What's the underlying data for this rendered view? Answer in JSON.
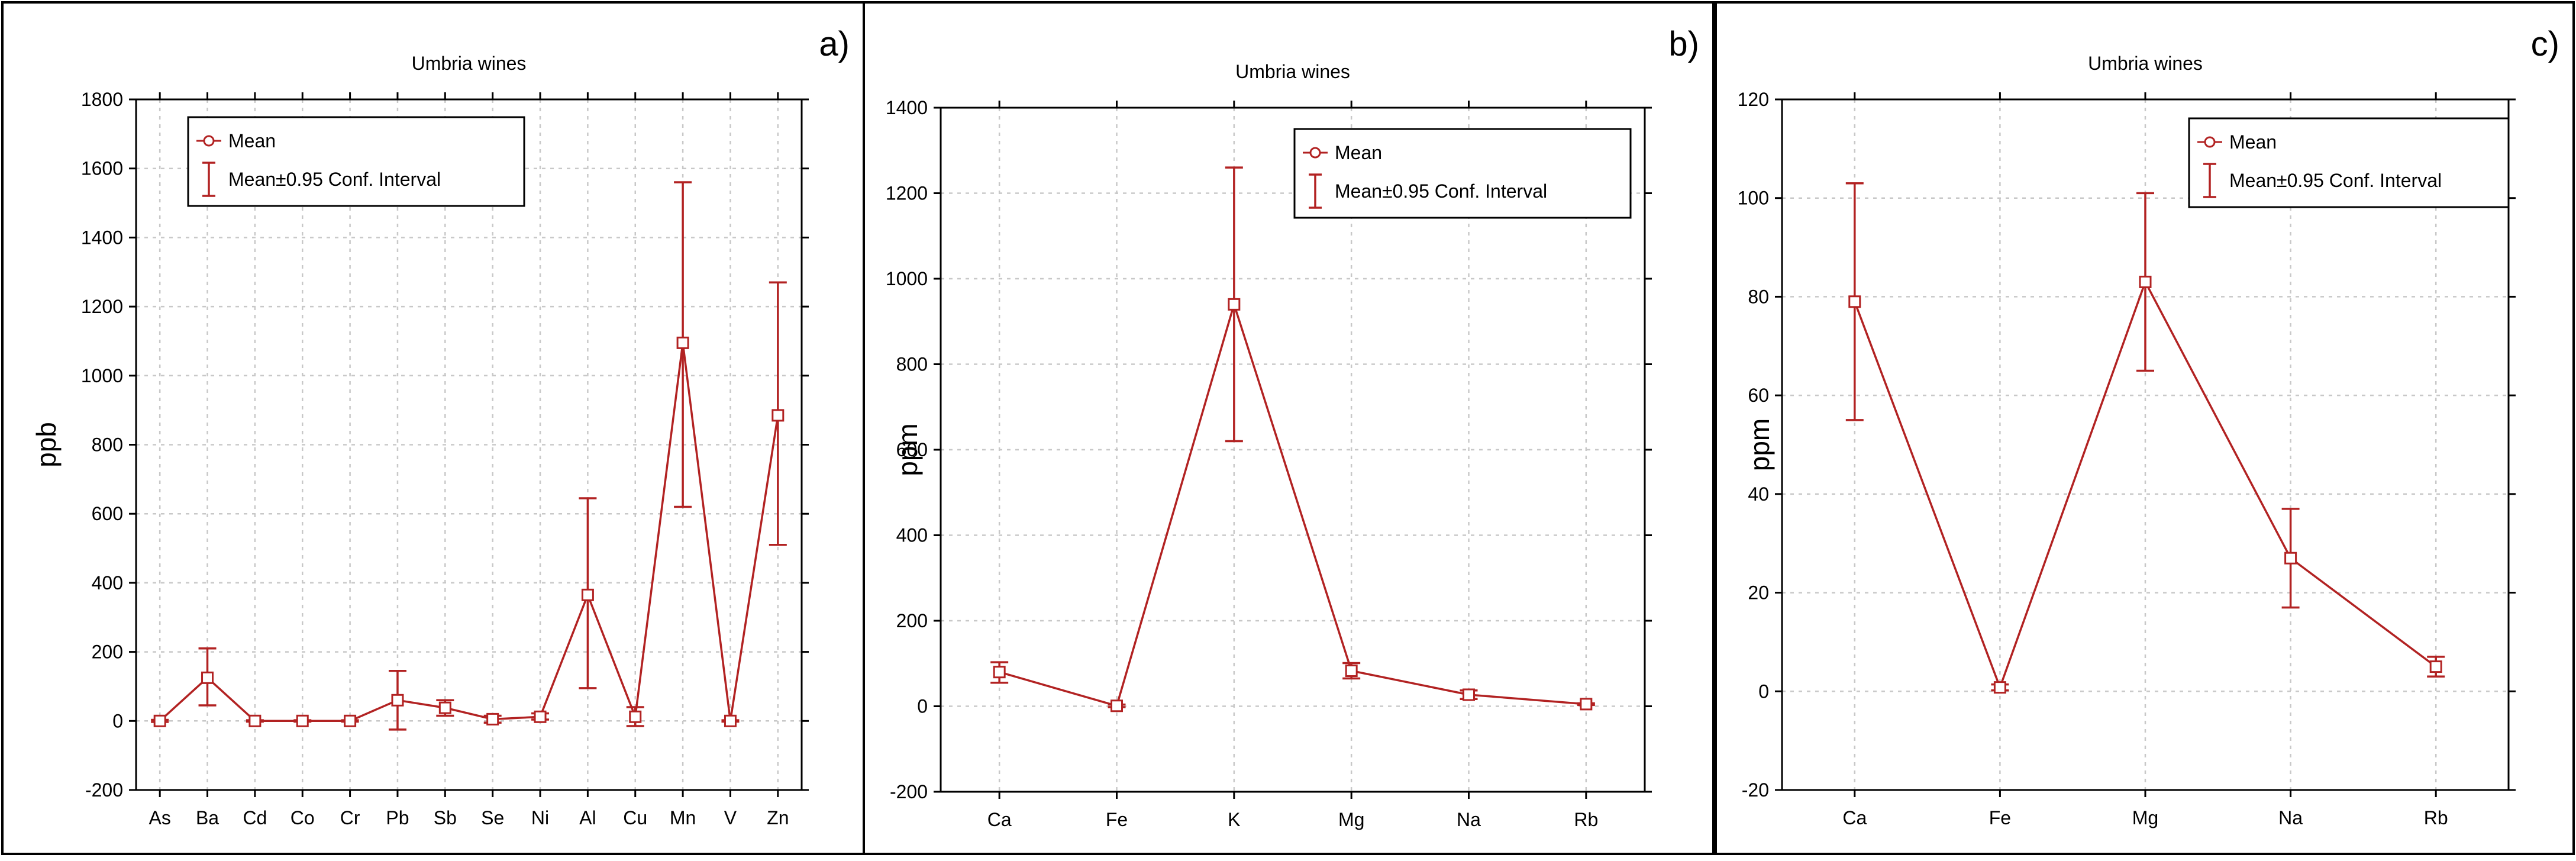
{
  "colors": {
    "series": "#b22222",
    "grid": "#c8c8c8",
    "frame": "#000000"
  },
  "chart_data": [
    {
      "panel_label": "a)",
      "type": "line",
      "title": "Umbria wines",
      "xlabel": "",
      "ylabel": "ppb",
      "ylim": [
        -200,
        1800
      ],
      "yticks": [
        -200,
        0,
        200,
        400,
        600,
        800,
        1000,
        1200,
        1400,
        1600,
        1800
      ],
      "grid": true,
      "legend_placement": "top-left",
      "legend": [
        "Mean",
        "Mean±0.95 Conf. Interval"
      ],
      "categories": [
        "As",
        "Ba",
        "Cd",
        "Co",
        "Cr",
        "Pb",
        "Sb",
        "Se",
        "Ni",
        "Al",
        "Cu",
        "Mn",
        "V",
        "Zn"
      ],
      "series": [
        {
          "values": [
            0,
            125,
            0,
            0,
            0,
            60,
            38,
            5,
            12,
            365,
            12,
            1095,
            0,
            885
          ],
          "ci_low": [
            -3,
            45,
            -2,
            -2,
            -2,
            -25,
            15,
            -5,
            4,
            95,
            -15,
            620,
            -2,
            510
          ],
          "ci_high": [
            3,
            210,
            2,
            2,
            2,
            145,
            60,
            15,
            22,
            645,
            40,
            1560,
            2,
            1270
          ]
        }
      ]
    },
    {
      "panel_label": "b)",
      "type": "line",
      "title": "Umbria wines",
      "xlabel": "",
      "ylabel": "ppm",
      "ylim": [
        -200,
        1400
      ],
      "yticks": [
        -200,
        0,
        200,
        400,
        600,
        800,
        1000,
        1200,
        1400
      ],
      "grid": true,
      "legend_placement": "top-right",
      "legend": [
        "Mean",
        "Mean±0.95 Conf. Interval"
      ],
      "categories": [
        "Ca",
        "Fe",
        "K",
        "Mg",
        "Na",
        "Rb"
      ],
      "series": [
        {
          "values": [
            80,
            1,
            940,
            83,
            27,
            5
          ],
          "ci_low": [
            55,
            -2,
            620,
            65,
            17,
            3
          ],
          "ci_high": [
            103,
            4,
            1260,
            101,
            37,
            7
          ]
        }
      ]
    },
    {
      "panel_label": "c)",
      "type": "line",
      "title": "Umbria wines",
      "xlabel": "",
      "ylabel": "ppm",
      "ylim": [
        -20,
        120
      ],
      "yticks": [
        -20,
        0,
        20,
        40,
        60,
        80,
        100,
        120
      ],
      "grid": true,
      "legend_placement": "top-right",
      "legend": [
        "Mean",
        "Mean±0.95 Conf. Interval"
      ],
      "categories": [
        "Ca",
        "Fe",
        "Mg",
        "Na",
        "Rb"
      ],
      "series": [
        {
          "values": [
            79,
            0.8,
            83,
            27,
            5
          ],
          "ci_low": [
            55,
            0.2,
            65,
            17,
            3
          ],
          "ci_high": [
            103,
            1.4,
            101,
            37,
            7
          ]
        }
      ]
    }
  ]
}
